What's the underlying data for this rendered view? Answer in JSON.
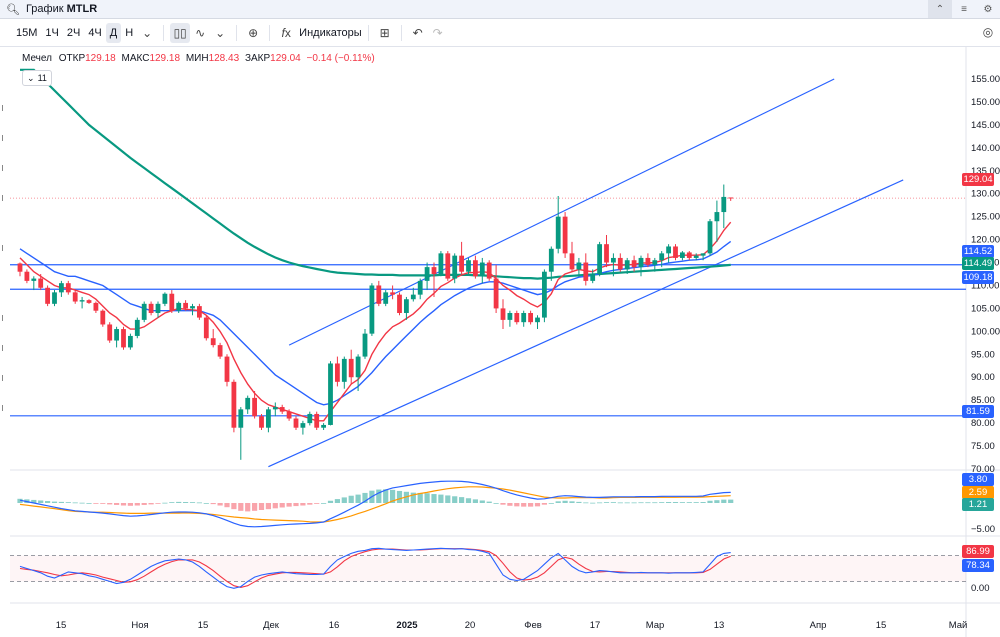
{
  "window": {
    "title_prefix": "График",
    "symbol": "MTLR"
  },
  "toolbar": {
    "timeframes": [
      "15М",
      "1Ч",
      "2Ч",
      "4Ч",
      "Д",
      "Н"
    ],
    "active_timeframe": "Д",
    "indicators_label": "Индикаторы"
  },
  "legend": {
    "name": "Мечел",
    "open_label": "ОТКР",
    "open": "129.18",
    "high_label": "МАКС",
    "high": "129.18",
    "low_label": "МИН",
    "low": "128.43",
    "close_label": "ЗАКР",
    "close": "129.04",
    "change": "−0.14 (−0.11%)",
    "collapsed_count": "11"
  },
  "price_axis": {
    "ticks": [
      "155.00",
      "150.00",
      "145.00",
      "140.00",
      "135.00",
      "130.00",
      "125.00",
      "120.00",
      "115.00",
      "110.00",
      "105.00",
      "100.00",
      "95.00",
      "90.00",
      "85.00",
      "80.00",
      "75.00",
      "70.00"
    ],
    "labels": [
      {
        "text": "129.04",
        "value": 129.04,
        "color": "#f23645"
      },
      {
        "text": "114.52",
        "value": 114.52,
        "color": "#2962ff"
      },
      {
        "text": "114.49",
        "value": 114.49,
        "color": "#089981"
      },
      {
        "text": "109.18",
        "value": 109.18,
        "color": "#2962ff"
      },
      {
        "text": "81.59",
        "value": 81.59,
        "color": "#2962ff"
      }
    ]
  },
  "macd_axis": {
    "labels": [
      {
        "text": "3.80",
        "color": "#2962ff"
      },
      {
        "text": "2.59",
        "color": "#ff9800"
      },
      {
        "text": "1.21",
        "color": "#26a69a"
      }
    ],
    "ticks": [
      "−5.00"
    ]
  },
  "stoch_axis": {
    "labels": [
      {
        "text": "86.99",
        "color": "#f23645"
      },
      {
        "text": "78.34",
        "color": "#2962ff"
      }
    ],
    "ticks": [
      "0.00"
    ]
  },
  "time_axis": [
    "15",
    "Ноя",
    "15",
    "Дек",
    "16",
    "2025",
    "20",
    "Фев",
    "17",
    "Мар",
    "13",
    "Апр",
    "15",
    "Май"
  ],
  "colors": {
    "up": "#089981",
    "down": "#f23645",
    "ma_fast": "#f23645",
    "ma_mid": "#2962ff",
    "ma_slow": "#089981",
    "hline": "#2962ff"
  },
  "chart_data": {
    "type": "candlestick",
    "ylim": [
      68,
      157
    ],
    "horizontal_levels": [
      114.52,
      109.18,
      81.59
    ],
    "candles": [
      [
        114.8,
        115,
        112,
        113
      ],
      [
        113,
        113.5,
        110.5,
        111
      ],
      [
        111,
        112,
        109,
        111.5
      ],
      [
        111.5,
        112.5,
        109,
        109.5
      ],
      [
        109.5,
        110,
        105.5,
        106
      ],
      [
        106,
        109,
        105.5,
        108.5
      ],
      [
        108.5,
        111,
        107.5,
        110.5
      ],
      [
        110.5,
        111,
        108,
        108.5
      ],
      [
        108.5,
        109,
        106,
        106.5
      ],
      [
        106.5,
        107.5,
        105,
        106.8
      ],
      [
        106.8,
        107,
        106,
        106.2
      ],
      [
        106.2,
        106.5,
        104,
        104.5
      ],
      [
        104.5,
        104.8,
        101,
        101.5
      ],
      [
        101.5,
        102,
        97.5,
        98
      ],
      [
        98,
        101,
        96.5,
        100.5
      ],
      [
        100.5,
        101,
        96,
        96.5
      ],
      [
        96.5,
        99.5,
        96,
        99
      ],
      [
        99,
        103,
        98.5,
        102.5
      ],
      [
        102.5,
        106.5,
        102,
        106
      ],
      [
        106,
        106.5,
        103.5,
        104
      ],
      [
        104,
        106.5,
        103,
        106
      ],
      [
        106,
        108.5,
        105.5,
        108.2
      ],
      [
        108.2,
        109,
        104,
        104.5
      ],
      [
        104.5,
        106.5,
        104,
        106.2
      ],
      [
        106.2,
        106.8,
        104.5,
        105
      ],
      [
        105,
        106,
        103.5,
        105.5
      ],
      [
        105.5,
        106,
        102.5,
        103
      ],
      [
        103,
        103.5,
        98,
        98.5
      ],
      [
        98.5,
        100.5,
        96.5,
        97
      ],
      [
        97,
        97.5,
        94,
        94.5
      ],
      [
        94.5,
        95,
        88,
        89
      ],
      [
        89,
        89.5,
        78,
        79
      ],
      [
        79,
        83.5,
        72,
        83
      ],
      [
        83,
        86,
        82,
        85.5
      ],
      [
        85.5,
        87,
        81,
        81.5
      ],
      [
        81.5,
        82,
        78.5,
        79
      ],
      [
        79,
        83.5,
        78,
        83
      ],
      [
        83,
        84.5,
        81.5,
        83.5
      ],
      [
        83.5,
        84,
        82,
        82.5
      ],
      [
        82.5,
        83,
        80.5,
        81
      ],
      [
        81,
        81.5,
        78.5,
        79
      ],
      [
        79,
        80.5,
        77.5,
        80
      ],
      [
        80,
        82.5,
        79.5,
        82
      ],
      [
        82,
        82.5,
        78.5,
        79
      ],
      [
        79,
        80,
        78.5,
        79.6
      ],
      [
        79.6,
        93.5,
        79.5,
        93
      ],
      [
        93,
        94.5,
        88,
        89
      ],
      [
        89,
        94.5,
        87.5,
        94
      ],
      [
        94,
        96,
        88.5,
        90
      ],
      [
        90,
        95,
        87,
        94.5
      ],
      [
        94.5,
        100.5,
        94,
        99.5
      ],
      [
        99.5,
        110.5,
        99,
        110
      ],
      [
        110,
        111,
        105.5,
        106
      ],
      [
        106,
        109,
        105.5,
        108.5
      ],
      [
        108.5,
        110,
        107,
        108
      ],
      [
        108,
        108.5,
        103.5,
        104
      ],
      [
        104,
        107.5,
        102.5,
        107
      ],
      [
        107,
        109.5,
        106.5,
        108
      ],
      [
        108,
        111.5,
        107,
        111
      ],
      [
        111,
        115,
        109,
        114
      ],
      [
        114,
        115,
        107.5,
        112.5
      ],
      [
        112.5,
        117.5,
        112,
        117
      ],
      [
        117,
        117.5,
        111,
        111.5
      ],
      [
        111.5,
        117,
        110.5,
        116.5
      ],
      [
        116.5,
        119.5,
        112.5,
        113
      ],
      [
        113,
        116,
        112.5,
        115.5
      ],
      [
        115.5,
        116.5,
        111.5,
        112
      ],
      [
        112,
        116,
        110.5,
        115
      ],
      [
        115,
        115.5,
        111,
        111.5
      ],
      [
        111.5,
        114.5,
        104,
        105
      ],
      [
        105,
        107,
        100.5,
        102.5
      ],
      [
        102.5,
        104.5,
        101,
        104
      ],
      [
        104,
        104.5,
        101.5,
        102
      ],
      [
        102,
        104.5,
        101,
        104
      ],
      [
        104,
        104.5,
        101.5,
        102
      ],
      [
        102,
        103.5,
        100.5,
        103
      ],
      [
        103,
        113.5,
        102,
        113
      ],
      [
        113,
        118.5,
        111,
        118
      ],
      [
        118,
        129.5,
        117,
        125
      ],
      [
        125,
        126,
        116,
        117
      ],
      [
        117,
        119.5,
        113,
        113.5
      ],
      [
        113.5,
        116,
        112,
        115
      ],
      [
        115,
        117,
        110,
        111
      ],
      [
        111,
        113.5,
        110.5,
        112.5
      ],
      [
        112.5,
        119.5,
        112,
        119
      ],
      [
        119,
        121,
        114,
        115
      ],
      [
        115,
        117,
        112,
        116
      ],
      [
        116,
        117,
        113,
        113.5
      ],
      [
        113.5,
        116,
        112.5,
        115.5
      ],
      [
        115.5,
        116.5,
        113,
        114
      ],
      [
        114,
        116.5,
        112,
        116
      ],
      [
        116,
        117,
        114,
        114.5
      ],
      [
        114.5,
        116,
        113,
        115.5
      ],
      [
        115.5,
        117.5,
        114,
        117
      ],
      [
        117,
        119,
        115,
        118.5
      ],
      [
        118.5,
        119,
        115.5,
        116
      ],
      [
        116,
        117.5,
        115.5,
        117.2
      ],
      [
        117.2,
        117.5,
        115.5,
        116
      ],
      [
        116,
        117,
        115.5,
        116.5
      ],
      [
        116.5,
        117,
        115.5,
        117
      ],
      [
        117,
        124.5,
        116.5,
        124
      ],
      [
        124,
        128.5,
        119.5,
        126
      ],
      [
        126,
        132,
        122.5,
        129.3
      ],
      [
        129.18,
        129.18,
        128.43,
        129.04
      ]
    ],
    "ma_fast": [
      116,
      114.5,
      113,
      112,
      111,
      110,
      109.5,
      109.5,
      109,
      108.5,
      108,
      107,
      105.5,
      104,
      103,
      101.5,
      100.5,
      100.5,
      101,
      102,
      103,
      104,
      104.5,
      105,
      104.8,
      104.7,
      104.5,
      103.5,
      102,
      100,
      97.5,
      94,
      91,
      88.5,
      86.5,
      85,
      84,
      83.5,
      83,
      82.5,
      82,
      81.5,
      81,
      80.5,
      80.5,
      82.5,
      84.5,
      86.5,
      88.5,
      89.5,
      91.5,
      95,
      97.5,
      99.5,
      101,
      101.8,
      102.8,
      103.8,
      105.2,
      107,
      108.3,
      109.8,
      110.6,
      111.6,
      112.3,
      112.8,
      112.8,
      113,
      112.8,
      111.5,
      110,
      109,
      107.8,
      107,
      106,
      105.3,
      106.3,
      108.2,
      111.3,
      112.5,
      113,
      113.5,
      113.2,
      113,
      113.8,
      114.3,
      114.6,
      114.4,
      114.5,
      114.6,
      114.9,
      114.9,
      115,
      115.4,
      116.1,
      116.3,
      116.6,
      116.6,
      116.6,
      116.7,
      118,
      119.7,
      122,
      123.8
    ],
    "ma_mid": [
      118,
      117,
      116,
      115,
      114,
      113,
      112.5,
      112,
      112,
      111.5,
      111,
      110.5,
      110,
      109,
      108,
      107,
      106,
      105.5,
      105,
      104.5,
      104.5,
      104.5,
      104.5,
      104.5,
      104.5,
      104.5,
      104.5,
      104,
      103.5,
      102.5,
      101,
      99.5,
      98,
      96.5,
      95,
      93.5,
      92,
      90.5,
      89.5,
      88.5,
      87.5,
      86.5,
      85.5,
      84.5,
      84,
      84.3,
      85,
      86,
      87,
      88,
      89.5,
      91,
      92.8,
      94.5,
      96,
      97.5,
      99,
      100.5,
      102,
      103.3,
      104.5,
      105.8,
      106.8,
      107.8,
      108.6,
      109.4,
      110,
      110.5,
      110.8,
      110.8,
      110.5,
      110,
      109.5,
      109,
      108.5,
      108,
      108.3,
      109,
      110,
      110.8,
      111.3,
      111.8,
      112,
      112.2,
      112.6,
      113,
      113.3,
      113.5,
      113.7,
      113.9,
      114.1,
      114.2,
      114.4,
      114.6,
      114.9,
      115.1,
      115.3,
      115.5,
      115.6,
      115.8,
      116.5,
      117.3,
      118.5,
      119.6
    ],
    "ma_slow": [
      160,
      158.5,
      157,
      155.5,
      154,
      152.5,
      151,
      149.5,
      148,
      146.5,
      145,
      143.8,
      142.6,
      141.4,
      140.2,
      139,
      137.8,
      136.7,
      135.6,
      134.5,
      133.4,
      132.3,
      131.2,
      130.1,
      129,
      127.9,
      126.8,
      125.7,
      124.6,
      123.5,
      122.4,
      121.3,
      120.3,
      119.3,
      118.4,
      117.6,
      116.8,
      116.1,
      115.5,
      115,
      114.6,
      114.2,
      113.9,
      113.6,
      113.3,
      113,
      112.8,
      112.7,
      112.6,
      112.5,
      112.4,
      112.4,
      112.3,
      112.3,
      112.3,
      112.2,
      112.2,
      112.2,
      112.2,
      112.2,
      112.2,
      112.3,
      112.3,
      112.3,
      112.3,
      112.3,
      112.2,
      112.2,
      112.1,
      112,
      111.9,
      111.8,
      111.7,
      111.6,
      111.6,
      111.5,
      111.6,
      111.7,
      111.9,
      112,
      112.1,
      112.2,
      112.3,
      112.4,
      112.5,
      112.6,
      112.7,
      112.8,
      112.9,
      113,
      113.1,
      113.2,
      113.3,
      113.4,
      113.5,
      113.6,
      113.7,
      113.8,
      113.9,
      114,
      114.1,
      114.2,
      114.35,
      114.49
    ],
    "channel": {
      "lower": {
        "from": [
          36,
          70.5
        ],
        "to": [
          128,
          133
        ]
      },
      "upper": {
        "from": [
          39,
          97
        ],
        "to": [
          118,
          155
        ]
      }
    },
    "macd_hist": [
      1.5,
      1.3,
      1.1,
      0.9,
      0.7,
      0.5,
      0.4,
      0.3,
      0.2,
      0.1,
      0,
      -0.1,
      -0.3,
      -0.5,
      -0.7,
      -0.9,
      -1,
      -0.9,
      -0.7,
      -0.5,
      -0.2,
      0.1,
      0.3,
      0.4,
      0.35,
      0.3,
      0.2,
      0,
      -0.4,
      -0.9,
      -1.5,
      -2.2,
      -2.8,
      -3,
      -2.8,
      -2.5,
      -2.2,
      -1.9,
      -1.6,
      -1.3,
      -1.1,
      -0.9,
      -0.6,
      -0.3,
      0,
      0.8,
      1.4,
      2,
      2.6,
      3,
      3.6,
      4.4,
      4.8,
      4.9,
      4.7,
      4.3,
      4,
      3.7,
      3.6,
      3.5,
      3.2,
      3,
      2.7,
      2.4,
      2.1,
      1.7,
      1.3,
      0.9,
      0.5,
      0,
      -0.6,
      -1,
      -1.2,
      -1.3,
      -1.3,
      -1.2,
      -0.6,
      0,
      0.6,
      0.8,
      0.6,
      0.4,
      0.2,
      0.1,
      0.2,
      0.3,
      0.3,
      0.2,
      0.2,
      0.2,
      0.25,
      0.25,
      0.25,
      0.3,
      0.35,
      0.35,
      0.3,
      0.3,
      0.3,
      0.35,
      0.8,
      1,
      1.2,
      1.21
    ],
    "macd_line": [
      1,
      0.5,
      0,
      -0.5,
      -1,
      -1.5,
      -2,
      -2.4,
      -2.8,
      -3,
      -3.2,
      -3.4,
      -3.6,
      -3.9,
      -4.2,
      -4.5,
      -4.7,
      -4.6,
      -4.4,
      -4.1,
      -3.8,
      -3.5,
      -3.3,
      -3.2,
      -3.2,
      -3.3,
      -3.5,
      -3.9,
      -4.5,
      -5.3,
      -6.2,
      -7.2,
      -8,
      -8.4,
      -8.5,
      -8.4,
      -8.2,
      -8,
      -7.8,
      -7.6,
      -7.5,
      -7.4,
      -7.3,
      -7.1,
      -6.8,
      -5.6,
      -4.5,
      -3.3,
      -2,
      -0.8,
      0.6,
      2.3,
      3.6,
      4.6,
      5.4,
      5.8,
      6.2,
      6.6,
      7,
      7.3,
      7.5,
      7.7,
      7.8,
      7.8,
      7.7,
      7.5,
      7.1,
      6.6,
      6,
      5.3,
      4.4,
      3.6,
      2.9,
      2.3,
      1.8,
      1.4,
      1.5,
      1.9,
      2.4,
      2.6,
      2.5,
      2.3,
      2.1,
      2,
      2,
      2.1,
      2.2,
      2.2,
      2.2,
      2.2,
      2.3,
      2.3,
      2.3,
      2.4,
      2.4,
      2.4,
      2.4,
      2.4,
      2.4,
      2.5,
      3.1,
      3.4,
      3.7,
      3.8
    ],
    "macd_signal": [
      -0.5,
      -0.8,
      -1.1,
      -1.4,
      -1.7,
      -2,
      -2.4,
      -2.7,
      -3,
      -3.1,
      -3.2,
      -3.3,
      -3.3,
      -3.4,
      -3.5,
      -3.6,
      -3.7,
      -3.7,
      -3.7,
      -3.6,
      -3.6,
      -3.6,
      -3.6,
      -3.6,
      -3.55,
      -3.6,
      -3.7,
      -3.9,
      -4.1,
      -4.4,
      -4.7,
      -5,
      -5.2,
      -5.4,
      -5.7,
      -5.9,
      -6,
      -6.1,
      -6.2,
      -6.3,
      -6.4,
      -6.5,
      -6.7,
      -6.8,
      -6.8,
      -6.4,
      -5.9,
      -5.3,
      -4.6,
      -3.8,
      -3,
      -2.1,
      -1.2,
      -0.3,
      0.7,
      1.5,
      2.2,
      2.9,
      3.4,
      3.8,
      4.3,
      4.7,
      5.1,
      5.4,
      5.6,
      5.8,
      5.8,
      5.7,
      5.5,
      5.3,
      5,
      4.6,
      4.1,
      3.6,
      3.1,
      2.6,
      2.1,
      1.9,
      1.8,
      1.8,
      1.9,
      1.9,
      1.9,
      1.9,
      1.8,
      1.8,
      1.9,
      2,
      2,
      2,
      2.05,
      2.05,
      2.05,
      2.1,
      2.05,
      2.05,
      2.1,
      2.1,
      2.1,
      2.15,
      2.3,
      2.4,
      2.5,
      2.59
    ],
    "stoch_k": [
      55,
      50,
      45,
      40,
      32,
      28,
      35,
      42,
      40,
      38,
      33,
      30,
      25,
      20,
      15,
      18,
      25,
      35,
      45,
      55,
      62,
      68,
      70,
      72,
      70,
      65,
      55,
      42,
      30,
      18,
      8,
      4,
      8,
      20,
      30,
      35,
      38,
      40,
      42,
      40,
      38,
      37,
      36,
      36,
      37,
      55,
      70,
      78,
      85,
      90,
      92,
      96,
      97,
      95,
      94,
      93,
      92,
      93,
      94,
      95,
      96,
      97,
      96,
      95,
      96,
      94,
      93,
      90,
      85,
      60,
      35,
      25,
      22,
      25,
      35,
      45,
      60,
      75,
      85,
      70,
      55,
      45,
      40,
      42,
      45,
      44,
      42,
      40,
      40,
      40,
      41,
      40,
      40,
      40,
      39,
      40,
      40,
      40,
      41,
      42,
      60,
      78,
      85,
      86.99
    ],
    "stoch_d": [
      50,
      48,
      46,
      43,
      40,
      36,
      33,
      35,
      38,
      40,
      38,
      35,
      30,
      26,
      22,
      18,
      19,
      24,
      32,
      42,
      52,
      60,
      66,
      70,
      70,
      70,
      65,
      56,
      45,
      32,
      20,
      10,
      6,
      10,
      19,
      28,
      34,
      37,
      40,
      41,
      41,
      40,
      39,
      38,
      37,
      42,
      54,
      68,
      78,
      84,
      89,
      93,
      95,
      95,
      95,
      94,
      93,
      93,
      93,
      94,
      95,
      96,
      96,
      96,
      96,
      95,
      94,
      92,
      89,
      80,
      62,
      42,
      28,
      23,
      25,
      30,
      40,
      55,
      70,
      76,
      72,
      60,
      50,
      43,
      42,
      43,
      43,
      42,
      41,
      40,
      40,
      40,
      40,
      40,
      40,
      40,
      40,
      40,
      40,
      41,
      48,
      60,
      72,
      78.34
    ]
  }
}
